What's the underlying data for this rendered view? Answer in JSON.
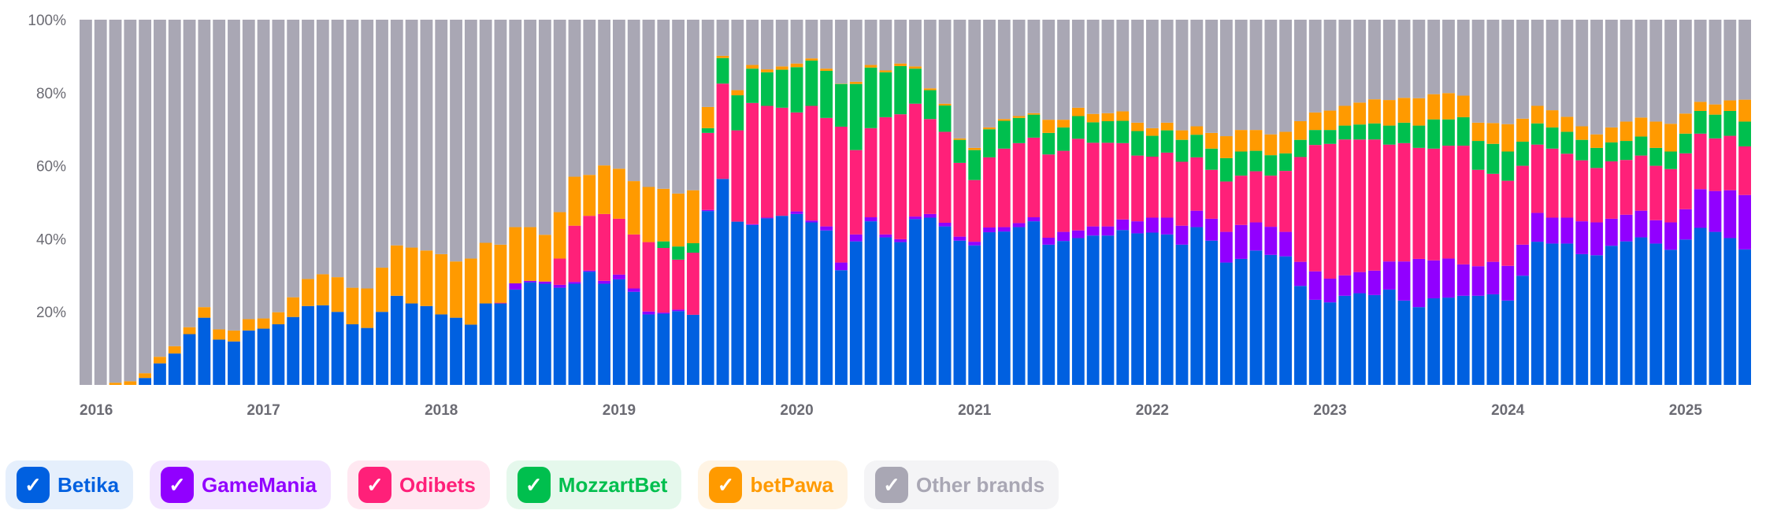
{
  "chart_data": {
    "type": "bar",
    "stacked": true,
    "normalized_percent": true,
    "title": "",
    "xlabel": "",
    "ylabel": "",
    "ylim": [
      0,
      100
    ],
    "yticks": [
      "20%",
      "40%",
      "60%",
      "80%",
      "100%"
    ],
    "ytick_values": [
      20,
      40,
      60,
      80,
      100
    ],
    "x_start": "2016-01",
    "x_end": "2025-05",
    "x_interval": "month",
    "xtick_labels": [
      "2016",
      "2017",
      "2018",
      "2019",
      "2020",
      "2021",
      "2022",
      "2023",
      "2024",
      "2025"
    ],
    "grid": false,
    "legend_position": "bottom-left",
    "series": [
      {
        "name": "Betika",
        "color": "#0060E0",
        "values": [
          0,
          0,
          0,
          0,
          1.9,
          5.9,
          8.6,
          13.9,
          18.4,
          12.4,
          11.9,
          14.9,
          15.4,
          16.6,
          18.6,
          21.6,
          21.8,
          20.0,
          16.6,
          15.6,
          20.0,
          24.4,
          22.3,
          21.6,
          19.3,
          18.4,
          16.5,
          22.3,
          22.3,
          26.1,
          28.1,
          27.7,
          26.6,
          27.7,
          31.0,
          27.7,
          28.9,
          25.5,
          19.3,
          19.5,
          20.2,
          19.2,
          47.6,
          56.4,
          44.7,
          43.8,
          45.6,
          46.3,
          46.8,
          44.5,
          42.3,
          31.4,
          39.3,
          44.8,
          40.4,
          39.1,
          45.4,
          45.8,
          43.4,
          39.5,
          38.2,
          41.8,
          42.0,
          43.2,
          44.8,
          38.4,
          39.4,
          40.2,
          40.9,
          40.9,
          42.4,
          41.5,
          41.7,
          41.2,
          38.4,
          43.2,
          39.5,
          33.5,
          34.5,
          36.8,
          35.6,
          35.2,
          27.1,
          23.3,
          22.6,
          24.4,
          25.1,
          24.6,
          26.1,
          23.1,
          21.3,
          23.7,
          23.9,
          24.4,
          24.4,
          24.8,
          23.1,
          29.9,
          39.2,
          38.7,
          38.7,
          35.8,
          35.5,
          38.1,
          39.3,
          40.4,
          38.7,
          37.0,
          39.8,
          43.0,
          41.9,
          40.2,
          37.1
        ]
      },
      {
        "name": "GameMania",
        "color": "#9100FF",
        "values": [
          0,
          0,
          0,
          0,
          0,
          0,
          0,
          0,
          0,
          0,
          0,
          0,
          0,
          0,
          0,
          0,
          0,
          0,
          0,
          0,
          0,
          0,
          0,
          0,
          0,
          0,
          0,
          0,
          0,
          1.7,
          0.4,
          0.6,
          0.8,
          0.5,
          0.3,
          0.8,
          1.3,
          0.9,
          0.8,
          0.3,
          0.4,
          0,
          0.3,
          0,
          0,
          0.2,
          0.2,
          0,
          0.7,
          0.5,
          1.1,
          2.1,
          1.9,
          1.1,
          0.8,
          0.8,
          0.7,
          1.0,
          1.0,
          1.1,
          1.0,
          1.3,
          1.2,
          1.1,
          1.1,
          1.9,
          2.5,
          2.1,
          2.5,
          2.5,
          2.9,
          3.3,
          4.1,
          4.6,
          5.2,
          4.5,
          6.0,
          8.4,
          9.3,
          7.7,
          7.7,
          6.7,
          6.6,
          7.8,
          6.5,
          5.6,
          5.8,
          6.7,
          7.7,
          10.7,
          13.2,
          10.4,
          10.7,
          8.6,
          8.1,
          8.9,
          9.5,
          8.5,
          7.9,
          7.1,
          7.1,
          9.0,
          9.0,
          7.4,
          7.3,
          7.3,
          6.4,
          7.5,
          8.3,
          10.6,
          11.2,
          13.1,
          14.9
        ]
      },
      {
        "name": "Odibets",
        "color": "#FF2079",
        "values": [
          0,
          0,
          0,
          0,
          0,
          0,
          0,
          0,
          0,
          0,
          0,
          0,
          0,
          0,
          0,
          0,
          0,
          0,
          0,
          0,
          0,
          0,
          0,
          0,
          0,
          0,
          0,
          0,
          0.2,
          0,
          0,
          0,
          7.2,
          15.4,
          15.0,
          18.3,
          15.3,
          14.8,
          19.0,
          17.7,
          13.7,
          17.0,
          21.1,
          26.1,
          25.0,
          33.2,
          30.6,
          29.6,
          27.1,
          31.4,
          29.7,
          37.2,
          23.1,
          24.4,
          32.1,
          34.2,
          30.9,
          26.0,
          24.9,
          20.2,
          16.9,
          19.2,
          21.5,
          21.9,
          21.8,
          22.8,
          22.2,
          25.1,
          22.9,
          22.9,
          20.9,
          18.0,
          16.7,
          17.8,
          17.5,
          14.6,
          13.4,
          13.8,
          13.5,
          14.0,
          14.0,
          16.7,
          28.7,
          34.6,
          36.9,
          37.2,
          36.3,
          35.9,
          32.0,
          32.4,
          30.4,
          30.6,
          30.9,
          32.5,
          26.4,
          24.1,
          23.3,
          21.6,
          18.7,
          18.9,
          17.5,
          16.7,
          14.9,
          15.7,
          15.0,
          15.1,
          14.9,
          14.6,
          15.3,
          15.2,
          14.4,
          14.9,
          13.3
        ]
      },
      {
        "name": "MozzartBet",
        "color": "#00BF4E",
        "values": [
          0,
          0,
          0,
          0,
          0,
          0,
          0,
          0,
          0,
          0,
          0,
          0,
          0,
          0,
          0,
          0,
          0,
          0,
          0,
          0,
          0,
          0,
          0,
          0,
          0,
          0,
          0,
          0,
          0,
          0,
          0,
          0,
          0,
          0,
          0,
          0,
          0,
          0,
          0,
          1.8,
          3.6,
          2.6,
          1.3,
          7.0,
          9.6,
          9.4,
          9.2,
          10.4,
          12.4,
          12.4,
          12.9,
          11.7,
          18.1,
          16.6,
          12.3,
          13.2,
          9.6,
          7.9,
          7.2,
          6.3,
          8.2,
          7.7,
          7.6,
          6.9,
          6.3,
          5.9,
          6.4,
          6.2,
          5.6,
          5.9,
          6.1,
          6.7,
          5.7,
          6.1,
          6.0,
          6.2,
          5.8,
          6.4,
          6.6,
          5.6,
          5.6,
          4.8,
          4.7,
          4.1,
          3.8,
          3.8,
          4.1,
          4.4,
          5.2,
          5.6,
          6.1,
          8.0,
          7.2,
          7.8,
          7.9,
          8.2,
          8.0,
          6.6,
          5.8,
          5.8,
          6.0,
          5.6,
          5.5,
          5.2,
          5.2,
          5.2,
          4.9,
          4.8,
          5.4,
          6.2,
          6.5,
          6.8,
          6.8
        ]
      },
      {
        "name": "betPawa",
        "color": "#FF9A00",
        "values": [
          0,
          0,
          0.6,
          1.0,
          1.3,
          1.8,
          2.0,
          1.9,
          2.9,
          2.8,
          3.0,
          3.1,
          2.8,
          3.3,
          5.4,
          7.4,
          8.5,
          9.5,
          10.0,
          10.8,
          12.1,
          13.8,
          15.3,
          15.2,
          16.5,
          15.4,
          18.1,
          16.6,
          15.9,
          15.4,
          14.7,
          12.8,
          12.7,
          13.4,
          11.2,
          13.3,
          13.7,
          14.6,
          15.1,
          14.4,
          14.5,
          14.5,
          5.8,
          0.6,
          1.4,
          1.0,
          0.8,
          0.9,
          1.0,
          0.6,
          0.6,
          0.1,
          0.6,
          0.7,
          0.5,
          0.7,
          0.6,
          0.5,
          0.5,
          0.4,
          0.6,
          0.5,
          0.5,
          0.5,
          0.4,
          3.6,
          2.1,
          2.3,
          2.3,
          2.2,
          2.6,
          2.3,
          2.1,
          2.1,
          2.6,
          2.3,
          4.3,
          6.0,
          5.9,
          5.7,
          5.7,
          5.9,
          5.1,
          4.8,
          5.3,
          5.4,
          6.0,
          6.6,
          7.0,
          6.8,
          7.5,
          6.9,
          7.2,
          5.9,
          5.0,
          5.7,
          7.5,
          6.3,
          4.8,
          4.7,
          4.1,
          3.7,
          3.7,
          4.1,
          5.3,
          5.2,
          7.2,
          7.6,
          5.5,
          2.5,
          2.8,
          2.9,
          6.0
        ]
      },
      {
        "name": "Other brands",
        "color": "#A9A7B4",
        "remainder_to_100": true
      }
    ]
  },
  "legend": [
    {
      "label": "Betika",
      "color": "#0060E0",
      "bg": "#E5EFFC",
      "text_color": "#0060E0",
      "checked": true
    },
    {
      "label": "GameMania",
      "color": "#9100FF",
      "bg": "#F2E5FF",
      "text_color": "#9100FF",
      "checked": true
    },
    {
      "label": "Odibets",
      "color": "#FF2079",
      "bg": "#FFE8F1",
      "text_color": "#FF2079",
      "checked": true
    },
    {
      "label": "MozzartBet",
      "color": "#00BF4E",
      "bg": "#E5F8EC",
      "text_color": "#00BF4E",
      "checked": true
    },
    {
      "label": "betPawa",
      "color": "#FF9A00",
      "bg": "#FFF4E4",
      "text_color": "#FF9A00",
      "checked": true
    },
    {
      "label": "Other brands",
      "color": "#A9A7B4",
      "bg": "#F4F4F6",
      "text_color": "#A9A7B4",
      "checked": true
    }
  ],
  "check_glyph": "✓"
}
